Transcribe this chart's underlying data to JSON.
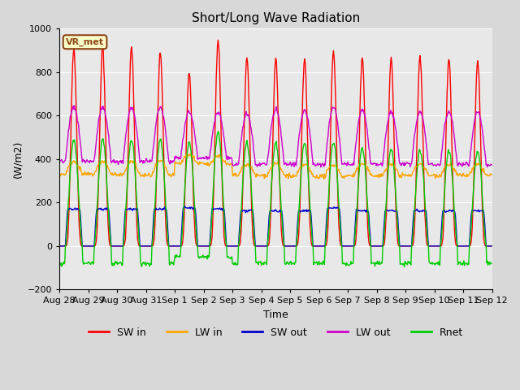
{
  "title": "Short/Long Wave Radiation",
  "xlabel": "Time",
  "ylabel": "(W/m2)",
  "ylim": [
    -200,
    1000
  ],
  "yticks": [
    -200,
    0,
    200,
    400,
    600,
    800,
    1000
  ],
  "fig_bg_color": "#d8d8d8",
  "plot_bg_color": "#e8e8e8",
  "colors": {
    "SW_in": "#ff0000",
    "LW_in": "#ffa500",
    "SW_out": "#0000cc",
    "LW_out": "#cc00cc",
    "Rnet": "#00cc00"
  },
  "label_box": "VR_met",
  "x_tick_labels": [
    "Aug 28",
    "Aug 29",
    "Aug 30",
    "Aug 31",
    "Sep 1",
    "Sep 2",
    "Sep 3",
    "Sep 4",
    "Sep 5",
    "Sep 6",
    "Sep 7",
    "Sep 8",
    "Sep 9",
    "Sep 10",
    "Sep 11",
    "Sep 12"
  ],
  "n_days": 15,
  "pts_per_day": 48,
  "SW_in_peak": [
    910,
    910,
    910,
    890,
    800,
    950,
    860,
    860,
    860,
    900,
    870,
    860,
    870,
    860,
    850
  ],
  "LW_in_base": [
    330,
    330,
    325,
    325,
    380,
    375,
    325,
    325,
    320,
    320,
    325,
    325,
    325,
    325,
    325
  ],
  "LW_in_peak": [
    390,
    390,
    390,
    390,
    420,
    415,
    375,
    380,
    375,
    375,
    378,
    375,
    378,
    375,
    375
  ],
  "SW_out_peak": [
    170,
    170,
    170,
    170,
    175,
    170,
    162,
    162,
    162,
    175,
    162,
    162,
    162,
    162,
    162
  ],
  "LW_out_base": [
    390,
    390,
    388,
    388,
    408,
    405,
    375,
    378,
    375,
    375,
    378,
    375,
    378,
    375,
    375
  ],
  "LW_out_peak": [
    640,
    640,
    638,
    638,
    618,
    615,
    608,
    628,
    625,
    638,
    628,
    618,
    618,
    618,
    618
  ],
  "Rnet_neg": [
    -80,
    -80,
    -80,
    -80,
    -50,
    -50,
    -80,
    -80,
    -80,
    -80,
    -80,
    -80,
    -80,
    -80,
    -80
  ],
  "Rnet_peak": [
    490,
    490,
    490,
    490,
    475,
    525,
    475,
    472,
    475,
    478,
    448,
    442,
    442,
    438,
    438
  ]
}
